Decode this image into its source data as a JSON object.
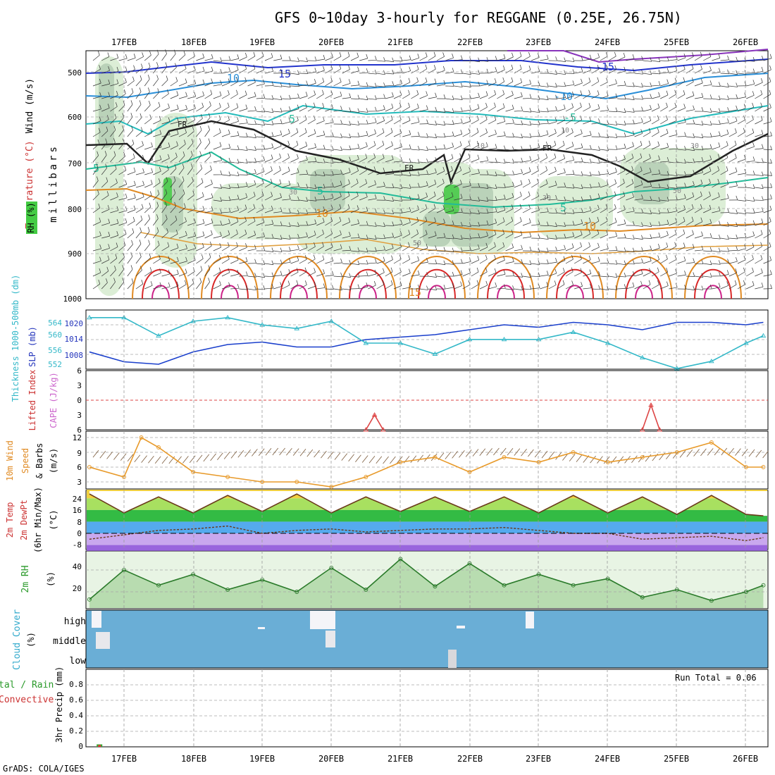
{
  "header": {
    "title": "GFS 0~10day 3-hourly for REGGANE (0.25E, 26.75N)",
    "credit": "GrADS: COLA/IGES"
  },
  "colors": {
    "rh_green": "#d8ecd2",
    "rh_dark": "#b4ccb4",
    "wind_blue": "#2233cc",
    "temp_teal": "#22bb99",
    "temp_orange": "#e08a22",
    "temp_red": "#d82828",
    "slp_blue": "#1a3fcc",
    "thickness_cyan": "#33b8c8",
    "wind10_orange": "#e89a2a",
    "rh2m_green": "#2a9a2a",
    "cloud_blue": "#6aaed6",
    "grid": "#a8a8a8"
  },
  "dates": {
    "top": [
      "17FEB",
      "18FEB",
      "19FEB",
      "20FEB",
      "21FEB",
      "22FEB",
      "23FEB",
      "24FEB",
      "25FEB",
      "26FEB"
    ],
    "bottom": [
      "17FEB",
      "18FEB",
      "19FEB",
      "20FEB",
      "21FEB",
      "22FEB",
      "23FEB",
      "24FEB",
      "25FEB",
      "26FEB"
    ]
  },
  "panels": {
    "upper": {
      "labels": [
        "Wind (m/s)",
        "Temperature (°C)",
        "RH (%)"
      ],
      "ylabel": "millibars",
      "yticks": [
        "500",
        "600",
        "700",
        "800",
        "900",
        "1000"
      ],
      "contour_labels": [
        "15",
        "10",
        "5",
        "FR",
        "-5",
        "-10",
        "-15",
        "10",
        "30",
        "50",
        "15"
      ]
    },
    "thickness": {
      "labels": [
        "SLP (mb)",
        "Thickness 1000-500mb (dm)"
      ],
      "left_ticks": [
        "564",
        "560",
        "556",
        "552"
      ],
      "right_ticks": [
        "1020",
        "1014",
        "1008"
      ]
    },
    "stability": {
      "labels": [
        "CAPE (J/kg)",
        "Lifted Index"
      ],
      "ticks": [
        "6",
        "3",
        "0",
        "3",
        "6"
      ]
    },
    "wind10": {
      "labels": [
        "10m Wind",
        "Speed",
        "& Barbs",
        "(m/s)"
      ],
      "ticks": [
        "12",
        "9",
        "6",
        "3"
      ]
    },
    "temp2m": {
      "labels": [
        "2m Temp",
        "2m DewPt",
        "(6hr Min/Max)",
        "(°C)"
      ],
      "ticks": [
        "24",
        "16",
        "8",
        "0",
        "-8"
      ]
    },
    "rh2m": {
      "labels": [
        "2m RH",
        "(%)"
      ],
      "ticks": [
        "40",
        "20"
      ]
    },
    "cloud": {
      "labels": [
        "Cloud Cover",
        "(%)"
      ],
      "levels": [
        "high",
        "middle",
        "low"
      ]
    },
    "precip": {
      "labels": [
        "tal / Rain",
        "Convective",
        "3hr Precip (mm)"
      ],
      "ticks": [
        "0.8",
        "0.6",
        "0.4",
        "0.2",
        "0"
      ],
      "run_total": "Run Total = 0.06"
    }
  },
  "chart_data": [
    {
      "type": "line",
      "panel": "thickness",
      "x": [
        "16FEB12",
        "17FEB00",
        "17FEB12",
        "18FEB00",
        "18FEB12",
        "19FEB00",
        "19FEB12",
        "20FEB00",
        "20FEB12",
        "21FEB00",
        "21FEB12",
        "22FEB00",
        "22FEB12",
        "23FEB00",
        "23FEB12",
        "24FEB00",
        "24FEB12",
        "25FEB00",
        "25FEB12",
        "26FEB00",
        "26FEB06"
      ],
      "series": [
        {
          "name": "SLP (mb)",
          "values": [
            1009,
            1005,
            1004,
            1009,
            1012,
            1013,
            1011,
            1011,
            1014,
            1015,
            1016,
            1018,
            1020,
            1019,
            1021,
            1020,
            1018,
            1021,
            1021,
            1020,
            1021
          ]
        },
        {
          "name": "Thickness 1000-500mb (dm)",
          "values": [
            565,
            565,
            560,
            564,
            565,
            563,
            562,
            564,
            558,
            558,
            555,
            559,
            559,
            559,
            561,
            558,
            554,
            551,
            553,
            558,
            560
          ]
        }
      ]
    },
    {
      "type": "line",
      "panel": "stability",
      "x": [
        "20FEB12",
        "20FEB15",
        "20FEB18",
        "24FEB12",
        "24FEB15",
        "24FEB18"
      ],
      "series": [
        {
          "name": "Lifted Index",
          "values": [
            6,
            3,
            6,
            6,
            1,
            6
          ]
        }
      ],
      "ylim": [
        6,
        -6
      ]
    },
    {
      "type": "line",
      "panel": "wind10",
      "x": [
        "16FEB12",
        "17FEB00",
        "17FEB06",
        "17FEB12",
        "18FEB00",
        "18FEB12",
        "19FEB00",
        "19FEB12",
        "20FEB00",
        "20FEB12",
        "21FEB00",
        "21FEB12",
        "22FEB00",
        "22FEB12",
        "23FEB00",
        "23FEB12",
        "24FEB00",
        "24FEB12",
        "25FEB00",
        "25FEB12",
        "26FEB00",
        "26FEB06"
      ],
      "series": [
        {
          "name": "10m Wind Speed",
          "values": [
            6,
            4,
            12,
            10,
            5,
            4,
            3,
            3,
            2,
            4,
            7,
            8,
            5,
            8,
            7,
            9,
            7,
            8,
            9,
            11,
            6,
            6
          ]
        }
      ],
      "ylim": [
        1,
        13
      ]
    },
    {
      "type": "area",
      "panel": "temp2m",
      "x": [
        "16FEB12",
        "17FEB00",
        "17FEB12",
        "18FEB00",
        "18FEB12",
        "19FEB00",
        "19FEB12",
        "20FEB00",
        "20FEB12",
        "21FEB00",
        "21FEB12",
        "22FEB00",
        "22FEB12",
        "23FEB00",
        "23FEB12",
        "24FEB00",
        "24FEB12",
        "25FEB00",
        "25FEB12",
        "26FEB00",
        "26FEB06"
      ],
      "series": [
        {
          "name": "2m Temp",
          "values": [
            27,
            14,
            25,
            14,
            26,
            15,
            27,
            14,
            25,
            15,
            25,
            15,
            25,
            14,
            26,
            14,
            25,
            13,
            26,
            13,
            12
          ]
        },
        {
          "name": "2m DewPt",
          "values": [
            -4,
            -1,
            2,
            3,
            5,
            0,
            2,
            3,
            1,
            2,
            3,
            3,
            4,
            2,
            0,
            0,
            -4,
            -3,
            -2,
            -5,
            -3
          ]
        }
      ],
      "ylim": [
        -12,
        30
      ]
    },
    {
      "type": "area",
      "panel": "rh2m",
      "x": [
        "16FEB12",
        "17FEB00",
        "17FEB12",
        "18FEB00",
        "18FEB12",
        "19FEB00",
        "19FEB12",
        "20FEB00",
        "20FEB12",
        "21FEB00",
        "21FEB12",
        "22FEB00",
        "22FEB12",
        "23FEB00",
        "23FEB12",
        "24FEB00",
        "24FEB12",
        "25FEB00",
        "25FEB12",
        "26FEB00",
        "26FEB06"
      ],
      "series": [
        {
          "name": "2m RH",
          "values": [
            13,
            40,
            26,
            36,
            22,
            31,
            20,
            42,
            22,
            50,
            25,
            46,
            26,
            36,
            26,
            32,
            15,
            22,
            12,
            20,
            26
          ]
        }
      ],
      "ylim": [
        5,
        55
      ]
    },
    {
      "type": "bar",
      "panel": "precip",
      "categories": [
        "16FEB15"
      ],
      "series": [
        {
          "name": "Total / Rain",
          "values": [
            0.05
          ]
        },
        {
          "name": "Convective",
          "values": [
            0.05
          ]
        }
      ],
      "ylim": [
        0,
        1.0
      ]
    }
  ]
}
